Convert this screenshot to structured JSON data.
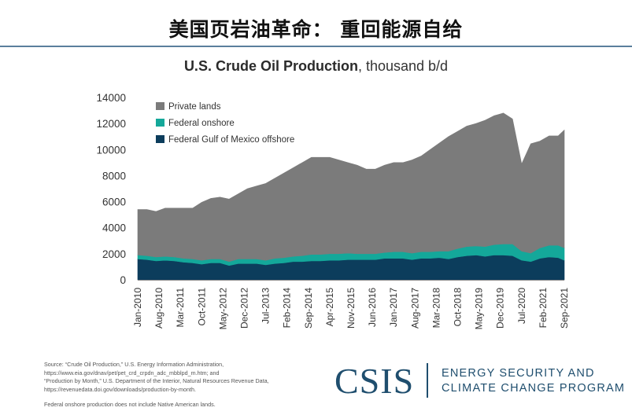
{
  "slide": {
    "title": "美国页岩油革命： 重回能源自给"
  },
  "chart_data": {
    "type": "area",
    "stacked": true,
    "title_bold": "U.S. Crude Oil Production",
    "title_rest": ", thousand b/d",
    "ylim": [
      0,
      14000
    ],
    "yticks": [
      0,
      2000,
      4000,
      6000,
      8000,
      10000,
      12000,
      14000
    ],
    "grid": false,
    "legend_position": "top-left",
    "colors": {
      "Private lands": "#7b7b7b",
      "Federal onshore": "#14a89a",
      "Federal Gulf of Mexico offshore": "#0c3d5c"
    },
    "x_tick_labels": [
      "Jan-2010",
      "Aug-2010",
      "Mar-2011",
      "Oct-2011",
      "May-2012",
      "Dec-2012",
      "Jul-2013",
      "Feb-2014",
      "Sep-2014",
      "Apr-2015",
      "Nov-2015",
      "Jun-2016",
      "Jan-2017",
      "Aug-2017",
      "Mar-2018",
      "Oct-2018",
      "May-2019",
      "Dec-2019",
      "Jul-2020",
      "Feb-2021",
      "Sep-2021"
    ],
    "x": [
      "Jan-2010",
      "Apr-2010",
      "Jul-2010",
      "Oct-2010",
      "Jan-2011",
      "Apr-2011",
      "Jul-2011",
      "Oct-2011",
      "Jan-2012",
      "Apr-2012",
      "Jul-2012",
      "Oct-2012",
      "Jan-2013",
      "Apr-2013",
      "Jul-2013",
      "Oct-2013",
      "Jan-2014",
      "Apr-2014",
      "Jul-2014",
      "Oct-2014",
      "Jan-2015",
      "Apr-2015",
      "Jul-2015",
      "Oct-2015",
      "Jan-2016",
      "Apr-2016",
      "Jul-2016",
      "Oct-2016",
      "Jan-2017",
      "Apr-2017",
      "Jul-2017",
      "Oct-2017",
      "Jan-2018",
      "Apr-2018",
      "Jul-2018",
      "Oct-2018",
      "Jan-2019",
      "Apr-2019",
      "Jul-2019",
      "Oct-2019",
      "Jan-2020",
      "Apr-2020",
      "Jul-2020",
      "Oct-2020",
      "Jan-2021",
      "Apr-2021",
      "Jul-2021",
      "Sep-2021"
    ],
    "series": [
      {
        "name": "Federal Gulf of Mexico offshore",
        "values": [
          1600,
          1550,
          1450,
          1500,
          1450,
          1350,
          1300,
          1200,
          1300,
          1300,
          1100,
          1250,
          1250,
          1250,
          1150,
          1250,
          1300,
          1400,
          1400,
          1450,
          1450,
          1500,
          1500,
          1550,
          1550,
          1550,
          1550,
          1650,
          1650,
          1650,
          1550,
          1650,
          1650,
          1700,
          1600,
          1750,
          1850,
          1900,
          1800,
          1900,
          1900,
          1850,
          1500,
          1400,
          1650,
          1750,
          1700,
          1500
        ]
      },
      {
        "name": "Federal onshore",
        "values": [
          300,
          300,
          300,
          300,
          300,
          300,
          300,
          300,
          300,
          300,
          300,
          350,
          350,
          350,
          350,
          400,
          400,
          400,
          450,
          500,
          500,
          500,
          500,
          500,
          450,
          450,
          450,
          450,
          500,
          500,
          500,
          500,
          500,
          500,
          600,
          650,
          700,
          700,
          750,
          800,
          850,
          900,
          700,
          650,
          800,
          900,
          950,
          950
        ]
      },
      {
        "name": "Private lands",
        "values": [
          3500,
          3550,
          3500,
          3700,
          3750,
          3850,
          3900,
          4450,
          4650,
          4750,
          4800,
          5000,
          5400,
          5600,
          5900,
          6150,
          6500,
          6800,
          7150,
          7450,
          7450,
          7400,
          7200,
          6950,
          6800,
          6500,
          6500,
          6700,
          6850,
          6850,
          7150,
          7350,
          7850,
          8300,
          8800,
          9000,
          9250,
          9400,
          9700,
          9900,
          10050,
          9600,
          6700,
          8400,
          8200,
          8400,
          8400,
          9050
        ]
      }
    ],
    "source_lines": [
      "Source: “Crude Oil Production,” U.S. Energy Information Administration,",
      "https://www.eia.gov/dnav/pet/pet_crd_crpdn_adc_mbblpd_m.htm; and",
      "“Production by Month,” U.S. Department of the Interior, Natural Resources Revenue Data,",
      "https://revenuedata.doi.gov/downloads/production-by-month."
    ],
    "footnote": "Federal onshore production does not include Native American lands."
  },
  "branding": {
    "logo": "CSIS",
    "program_line1": "ENERGY SECURITY AND",
    "program_line2": "CLIMATE CHANGE PROGRAM"
  }
}
